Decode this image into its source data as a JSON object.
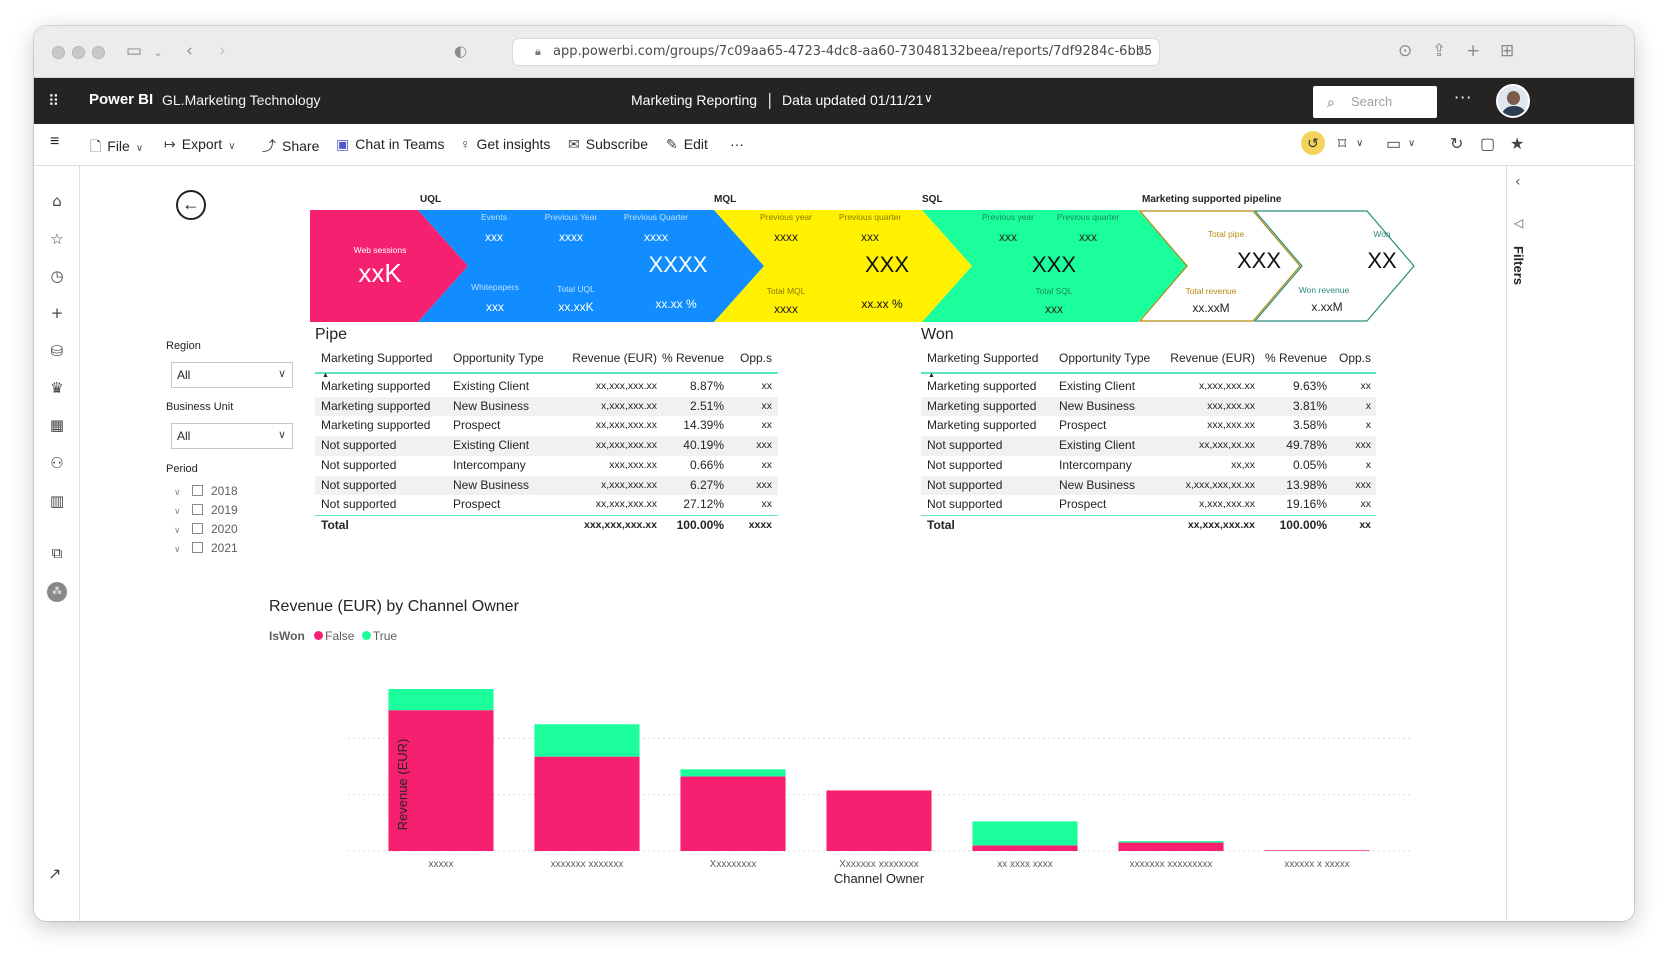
{
  "browser": {
    "url": "app.powerbi.com/groups/7c09aa65-4723-4dc8-aa60-73048132beea/reports/7df9284c-6bb5"
  },
  "header": {
    "brand": "Power BI",
    "workspace": "GL.Marketing Technology",
    "report_title": "Marketing Reporting",
    "separator": "|",
    "data_updated": "Data updated 01/11/21",
    "search_placeholder": "Search",
    "more": "···"
  },
  "toolbar": {
    "file": "File",
    "export": "Export",
    "share": "Share",
    "chat": "Chat in Teams",
    "insights": "Get insights",
    "subscribe": "Subscribe",
    "edit": "Edit",
    "more": "···"
  },
  "filters_pane": {
    "label": "Filters"
  },
  "slicers": {
    "region_label": "Region",
    "region_value": "All",
    "bu_label": "Business Unit",
    "bu_value": "All",
    "period_label": "Period",
    "periods": [
      "2018",
      "2019",
      "2020",
      "2021"
    ]
  },
  "funnel": {
    "colors": {
      "web": "#f5206f",
      "uql": "#118dff",
      "mql": "#fff100",
      "sql": "#1aff9c",
      "pipe": "#b58a0c",
      "won": "#2a8c7c"
    },
    "stage_titles": {
      "uql": "UQL",
      "mql": "MQL",
      "sql": "SQL",
      "pipeline": "Marketing supported pipeline"
    },
    "web": {
      "label": "Web sessions",
      "value": "xxK"
    },
    "uql": {
      "events_label": "Events",
      "events_value": "xxx",
      "prev_year_label": "Previous Year",
      "prev_year_value": "xxxx",
      "prev_quarter_label": "Previous Quarter",
      "prev_quarter_value": "xxxx",
      "main_value": "XXXX",
      "whitepapers_label": "Whitepapers",
      "whitepapers_value": "xxx",
      "total_label": "Total UQL",
      "total_value": "xx.xxK",
      "pct_value": "xx.xx %"
    },
    "mql": {
      "prev_year_label": "Previous year",
      "prev_year_value": "xxxx",
      "prev_quarter_label": "Previous quarter",
      "prev_quarter_value": "xxx",
      "main_value": "XXX",
      "total_label": "Total MQL",
      "total_value": "xxxx",
      "pct_value": "xx.xx %"
    },
    "sql": {
      "prev_year_label": "Previous year",
      "prev_year_value": "xxx",
      "prev_quarter_label": "Previous quarter",
      "prev_quarter_value": "xxx",
      "main_value": "XXX",
      "total_label": "Total SQL",
      "total_value": "xxx"
    },
    "pipe": {
      "total_label": "Total pipe",
      "main_value": "XXX",
      "revenue_label": "Total revenue",
      "revenue_value": "xx.xxM"
    },
    "won": {
      "label": "Won",
      "main_value": "XX",
      "revenue_label": "Won revenue",
      "revenue_value": "x.xxM"
    }
  },
  "pipe_table": {
    "title": "Pipe",
    "columns": [
      "Marketing Supported",
      "Opportunity Type",
      "Revenue (EUR)",
      "% Revenue",
      "Opp.s"
    ],
    "rows": [
      [
        "Marketing supported",
        "Existing Client",
        "xx,xxx,xxx.xx",
        "8.87%",
        "xx"
      ],
      [
        "Marketing supported",
        "New Business",
        "x,xxx,xxx.xx",
        "2.51%",
        "xx"
      ],
      [
        "Marketing supported",
        "Prospect",
        "xx,xxx,xxx.xx",
        "14.39%",
        "xx"
      ],
      [
        "Not supported",
        "Existing Client",
        "xx,xxx,xxx.xx",
        "40.19%",
        "xxx"
      ],
      [
        "Not supported",
        "Intercompany",
        "xxx,xxx.xx",
        "0.66%",
        "xx"
      ],
      [
        "Not supported",
        "New Business",
        "x,xxx,xxx.xx",
        "6.27%",
        "xxx"
      ],
      [
        "Not supported",
        "Prospect",
        "xx,xxx,xxx.xx",
        "27.12%",
        "xx"
      ]
    ],
    "total": [
      "Total",
      "",
      "xxx,xxx,xxx.xx",
      "100.00%",
      "xxxx"
    ]
  },
  "won_table": {
    "title": "Won",
    "columns": [
      "Marketing Supported",
      "Opportunity Type",
      "Revenue (EUR)",
      "% Revenue",
      "Opp.s"
    ],
    "rows": [
      [
        "Marketing supported",
        "Existing Client",
        "x,xxx,xxx.xx",
        "9.63%",
        "xx"
      ],
      [
        "Marketing supported",
        "New Business",
        "xxx,xxx.xx",
        "3.81%",
        "x"
      ],
      [
        "Marketing supported",
        "Prospect",
        "xxx,xxx.xx",
        "3.58%",
        "x"
      ],
      [
        "Not supported",
        "Existing Client",
        "xx,xxx,xx.xx",
        "49.78%",
        "xxx"
      ],
      [
        "Not supported",
        "Intercompany",
        "xx,xx",
        "0.05%",
        "x"
      ],
      [
        "Not supported",
        "New Business",
        "x,xxx,xxx,xx.xx",
        "13.98%",
        "xxx"
      ],
      [
        "Not supported",
        "Prospect",
        "x,xxx,xxx.xx",
        "19.16%",
        "xx"
      ]
    ],
    "total": [
      "Total",
      "",
      "xx,xxx,xxx.xx",
      "100.00%",
      "xx"
    ]
  },
  "chart_data": {
    "type": "bar",
    "stacked": true,
    "title": "Revenue (EUR) by Channel Owner",
    "legend_title": "IsWon",
    "xlabel": "Channel Owner",
    "ylabel": "Revenue (EUR)",
    "grid": true,
    "legend_position": "top-left",
    "categories": [
      "xxxxx",
      "xxxxxxx xxxxxxx",
      "Xxxxxxxxx",
      "Xxxxxxx xxxxxxxx",
      "xx xxxx xxxx",
      "xxxxxxx xxxxxxxxx",
      "xxxxxx x xxxxx"
    ],
    "series": [
      {
        "name": "False",
        "color": "#f5206f",
        "values": [
          100,
          67,
          53,
          43,
          4,
          6,
          0.5
        ]
      },
      {
        "name": "True",
        "color": "#1aff9c",
        "values": [
          15,
          23,
          5,
          0,
          17,
          1,
          0
        ]
      }
    ],
    "ylim": [
      0,
      120
    ]
  }
}
